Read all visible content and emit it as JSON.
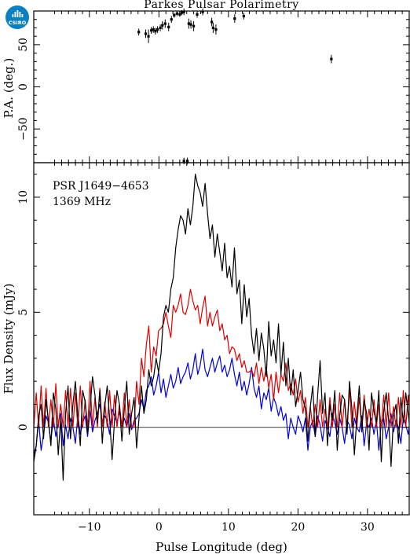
{
  "logo": {
    "text": "CSIRO",
    "color": "#0a7fc2"
  },
  "chart_data": [
    {
      "type": "scatter",
      "title": "Parkes Pulsar Polarimetry",
      "ylabel": "P.A. (deg.)",
      "xlim": [
        -18,
        36
      ],
      "ylim": [
        -90,
        90
      ],
      "yticks": [
        -50,
        0,
        50
      ],
      "series": [
        {
          "color": "#000000",
          "x": [
            -2.9,
            -1.9,
            -1.5,
            -1.1,
            -0.8,
            -0.5,
            -0.2,
            0.2,
            0.5,
            0.9,
            1.4,
            1.8,
            2.2,
            2.6,
            3.0,
            3.3,
            3.6,
            4.3,
            4.6,
            5.0,
            5.5,
            6.3,
            7.6,
            7.8,
            8.2,
            10.9,
            12.2,
            24.8,
            3.6,
            4.1
          ],
          "y": [
            65,
            63,
            60,
            67,
            68,
            66,
            68,
            70,
            73,
            75,
            71,
            80,
            85,
            87,
            86,
            88,
            89,
            75,
            74,
            72,
            86,
            89,
            77,
            70,
            68,
            81,
            84,
            33,
            -88,
            -88
          ],
          "err": [
            4,
            5,
            8,
            4,
            4,
            4,
            4,
            4,
            5,
            5,
            5,
            4,
            3,
            3,
            3,
            3,
            4,
            6,
            5,
            6,
            4,
            4,
            5,
            6,
            6,
            5,
            4,
            5,
            4,
            4
          ]
        }
      ]
    },
    {
      "type": "line",
      "xlabel": "Pulse Longitude (deg)",
      "ylabel": "Flux Density (mJy)",
      "xlim": [
        -18,
        36
      ],
      "ylim": [
        -3.8,
        11.5
      ],
      "xticks": [
        -10,
        0,
        10,
        20,
        30
      ],
      "yticks": [
        0,
        5,
        10
      ],
      "annotations": [
        "PSR J1649−4653",
        "1369 MHz"
      ],
      "x_start": -18,
      "x_step": 0.352,
      "series": [
        {
          "color": "#000000",
          "values": [
            -1.5,
            -0.8,
            0.5,
            1.0,
            -0.5,
            1.2,
            0.3,
            -0.8,
            1.5,
            0.8,
            -1.2,
            0.4,
            -2.3,
            0.6,
            1.8,
            -0.5,
            1.0,
            2.0,
            0.5,
            -0.8,
            1.6,
            1.1,
            -0.3,
            0.8,
            2.2,
            1.4,
            0.2,
            1.6,
            -0.7,
            0.9,
            1.8,
            0.4,
            -1.4,
            0.3,
            1.6,
            1.0,
            -0.6,
            0.8,
            2.0,
            -0.3,
            0.6,
            1.3,
            -0.9,
            0.4,
            1.8,
            0.6,
            1.2,
            2.5,
            1.8,
            2.2,
            3.0,
            2.4,
            3.2,
            4.8,
            5.3,
            5.0,
            6.0,
            6.5,
            7.8,
            8.6,
            9.2,
            9.0,
            8.4,
            9.5,
            8.8,
            9.6,
            11.0,
            10.5,
            10.2,
            9.6,
            10.6,
            9.3,
            8.2,
            8.8,
            7.4,
            8.4,
            7.6,
            6.8,
            8.0,
            6.5,
            7.0,
            6.1,
            7.8,
            5.8,
            6.4,
            4.5,
            6.2,
            4.8,
            5.6,
            4.0,
            3.2,
            4.3,
            2.9,
            4.1,
            3.4,
            2.2,
            4.6,
            3.1,
            3.8,
            2.8,
            4.5,
            2.3,
            3.7,
            1.8,
            3.0,
            1.4,
            2.5,
            0.9,
            1.6,
            2.4,
            1.2,
            0.8,
            -0.6,
            0.9,
            1.8,
            -0.4,
            1.4,
            2.9,
            0.6,
            1.5,
            -0.8,
            1.0,
            0.3,
            1.6,
            -1.0,
            0.5,
            1.4,
            1.2,
            -0.3,
            2.0,
            0.8,
            -1.2,
            0.4,
            1.8,
            -0.2,
            1.2,
            0.6,
            -1.0,
            1.5,
            0.7,
            0.2,
            1.6,
            -1.5,
            0.7,
            1.5,
            0.3,
            -1.7,
            0.5,
            1.0,
            -0.7,
            1.3,
            0.2,
            1.5,
            0.6,
            -0.4,
            1.9,
            0.4,
            2.1,
            -2.0
          ]
        },
        {
          "color": "#e00000",
          "values": [
            0.0,
            1.5,
            0.0,
            1.8,
            0.0,
            1.7,
            0.0,
            1.2,
            0.0,
            1.9,
            0.0,
            1.0,
            0.0,
            1.6,
            0.0,
            1.7,
            0.0,
            1.5,
            0.0,
            1.8,
            0.0,
            1.2,
            0.0,
            2.0,
            0.0,
            1.3,
            0.0,
            1.7,
            0.0,
            1.1,
            0.0,
            1.6,
            0.0,
            1.4,
            0.0,
            1.0,
            0.0,
            1.5,
            0.0,
            1.2,
            0.0,
            0.0,
            2.0,
            1.0,
            3.0,
            2.2,
            3.6,
            4.4,
            2.4,
            3.5,
            3.1,
            4.2,
            4.3,
            4.5,
            5.0,
            4.4,
            3.9,
            5.3,
            5.0,
            5.3,
            5.8,
            5.0,
            4.9,
            5.3,
            6.0,
            5.5,
            5.1,
            5.3,
            4.5,
            5.2,
            5.7,
            4.4,
            5.0,
            4.4,
            4.8,
            5.1,
            4.2,
            4.5,
            3.8,
            4.0,
            3.2,
            3.5,
            3.4,
            2.9,
            3.2,
            2.6,
            2.9,
            2.4,
            2.4,
            2.5,
            2.2,
            2.8,
            1.9,
            2.6,
            2.0,
            2.6,
            1.7,
            2.3,
            1.2,
            2.4,
            1.5,
            2.3,
            2.0,
            2.8,
            1.6,
            1.9,
            1.4,
            2.1,
            1.1,
            1.6,
            0.6,
            1.3,
            0.0,
            0.9,
            0.0,
            1.0,
            0.0,
            1.2,
            0.0,
            0.8,
            0.0,
            1.3,
            0.0,
            1.0,
            0.0,
            1.5,
            0.0,
            1.2,
            0.0,
            1.7,
            0.0,
            1.1,
            0.0,
            1.3,
            0.0,
            1.4,
            0.0,
            0.8,
            0.0,
            1.2,
            0.0,
            1.0,
            0.0,
            1.4,
            0.0,
            1.5,
            0.0,
            0.9,
            0.0,
            1.3,
            0.0,
            1.6,
            0.0,
            1.4,
            0.0,
            0.8
          ]
        },
        {
          "color": "#0000dd",
          "values": [
            -1.2,
            -0.8,
            0.3,
            -1.0,
            -0.3,
            0.5,
            0.2,
            -0.6,
            0.4,
            -0.4,
            0.2,
            0.6,
            -0.8,
            0.1,
            -0.5,
            0.4,
            0.0,
            -0.7,
            0.5,
            -0.3,
            0.2,
            0.5,
            -0.4,
            0.8,
            -0.2,
            0.3,
            0.6,
            1.0,
            0.2,
            0.5,
            0.3,
            -0.3,
            0.8,
            0.5,
            0.2,
            0.7,
            0.1,
            0.4,
            0.0,
            0.6,
            -0.1,
            0.3,
            0.4,
            0.6,
            1.2,
            0.8,
            1.6,
            1.8,
            2.2,
            1.4,
            1.8,
            2.4,
            1.5,
            2.1,
            1.3,
            1.8,
            2.3,
            1.7,
            2.0,
            2.6,
            1.9,
            2.2,
            2.4,
            2.8,
            2.1,
            2.5,
            3.2,
            2.3,
            2.7,
            3.4,
            2.5,
            2.2,
            2.6,
            3.0,
            2.4,
            2.8,
            3.1,
            2.4,
            2.7,
            2.2,
            2.5,
            3.0,
            2.3,
            1.8,
            2.4,
            1.6,
            2.0,
            1.4,
            1.9,
            2.6,
            1.7,
            1.3,
            1.8,
            0.8,
            1.5,
            1.2,
            1.7,
            0.7,
            1.3,
            1.0,
            0.5,
            0.9,
            0.3,
            0.6,
            -0.5,
            0.4,
            0.0,
            -0.3,
            0.5,
            0.2,
            -0.2,
            0.4,
            -1.0,
            0.0,
            0.3,
            -0.4,
            0.5,
            0.1,
            -0.6,
            0.3,
            0.0,
            -0.4,
            0.6,
            0.2,
            -0.3,
            0.4,
            0.0,
            -0.7,
            0.3,
            0.1,
            -0.5,
            0.4,
            0.0,
            -0.2,
            0.5,
            -0.8,
            0.2,
            0.0,
            0.4,
            -0.3,
            0.3,
            -1.0,
            0.2,
            0.4,
            -0.5,
            0.0,
            0.6,
            -0.2,
            0.3,
            0.0,
            -0.7,
            0.4,
            0.1,
            -0.3,
            0.5,
            0.0,
            0.3,
            -0.6
          ]
        }
      ]
    }
  ]
}
